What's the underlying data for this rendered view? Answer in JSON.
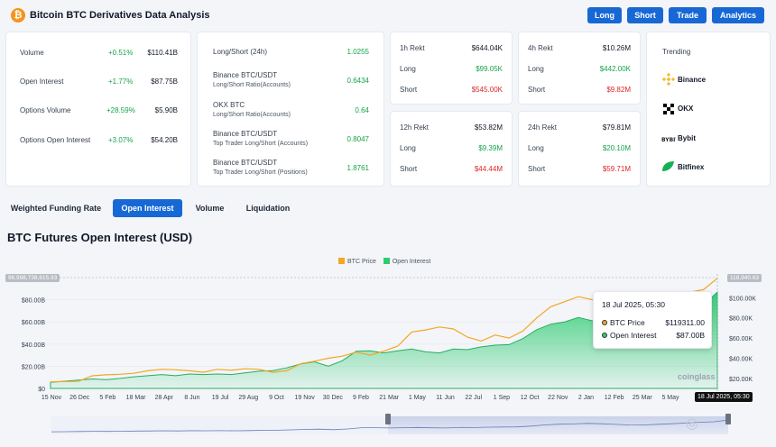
{
  "header": {
    "title": "Bitcoin BTC Derivatives Data Analysis",
    "logo_symbol": "₿",
    "buttons": [
      "Long",
      "Short",
      "Trade",
      "Analytics"
    ]
  },
  "stats": [
    {
      "label": "Volume",
      "change": "+0.51%",
      "value": "$110.41B"
    },
    {
      "label": "Open Interest",
      "change": "+1.77%",
      "value": "$87.75B"
    },
    {
      "label": "Options Volume",
      "change": "+28.59%",
      "value": "$5.90B"
    },
    {
      "label": "Options Open Interest",
      "change": "+3.07%",
      "value": "$54.20B"
    }
  ],
  "ratios": [
    {
      "label": "Long/Short (24h)",
      "sub": "",
      "value": "1.0255"
    },
    {
      "label": "Binance BTC/USDT",
      "sub": "Long/Short Ratio(Accounts)",
      "value": "0.6434"
    },
    {
      "label": "OKX BTC",
      "sub": "Long/Short Ratio(Accounts)",
      "value": "0.64"
    },
    {
      "label": "Binance BTC/USDT",
      "sub": "Top Trader Long/Short (Accounts)",
      "value": "0.8047"
    },
    {
      "label": "Binance BTC/USDT",
      "sub": "Top Trader Long/Short (Positions)",
      "value": "1.8761"
    }
  ],
  "rekt": [
    {
      "period": "1h Rekt",
      "total": "$644.04K",
      "long_label": "Long",
      "long": "$99.05K",
      "short_label": "Short",
      "short": "$545.00K"
    },
    {
      "period": "4h Rekt",
      "total": "$10.26M",
      "long_label": "Long",
      "long": "$442.00K",
      "short_label": "Short",
      "short": "$9.82M"
    },
    {
      "period": "12h Rekt",
      "total": "$53.82M",
      "long_label": "Long",
      "long": "$9.39M",
      "short_label": "Short",
      "short": "$44.44M"
    },
    {
      "period": "24h Rekt",
      "total": "$79.81M",
      "long_label": "Long",
      "long": "$20.10M",
      "short_label": "Short",
      "short": "$59.71M"
    }
  ],
  "trending": {
    "title": "Trending",
    "items": [
      {
        "name": "Binance",
        "icon": "binance-icon"
      },
      {
        "name": "OKX",
        "icon": "okx-icon"
      },
      {
        "name": "Bybit",
        "icon": "bybit-icon"
      },
      {
        "name": "Bitfinex",
        "icon": "bitfinex-icon"
      }
    ]
  },
  "tabs": [
    "Weighted Funding Rate",
    "Open Interest",
    "Volume",
    "Liquidation"
  ],
  "active_tab": "Open Interest",
  "chart_title": "BTC Futures Open Interest (USD)",
  "tooltip": {
    "date": "18 Jul 2025, 05:30",
    "price_label": "BTC Price",
    "price": "$119311.00",
    "oi_label": "Open Interest",
    "oi": "$87.00B"
  },
  "watermark": "coinglass",
  "chart_data": {
    "type": "area",
    "title": "",
    "legend": [
      "BTC Price",
      "Open Interest"
    ],
    "legend_position": "top-center",
    "colors": {
      "price": "#f5a623",
      "oi": "#2ecc71"
    },
    "x_labels": [
      "15 Nov",
      "26 Dec",
      "5 Feb",
      "18 Mar",
      "28 Apr",
      "8 Jun",
      "19 Jul",
      "29 Aug",
      "9 Oct",
      "19 Nov",
      "30 Dec",
      "9 Feb",
      "21 Mar",
      "1 May",
      "11 Jun",
      "22 Jul",
      "1 Sep",
      "12 Oct",
      "22 Nov",
      "2 Jan",
      "12 Feb",
      "25 Mar",
      "5 May"
    ],
    "y_left_ticks": [
      "$0",
      "$20.00B",
      "$40.00B",
      "$60.00B",
      "$80.00B"
    ],
    "y_right_ticks": [
      "$20.00K",
      "$40.00K",
      "$60.00K",
      "$80.00K",
      "$100.00K"
    ],
    "y_left_max_label": "98,998,738,615.93",
    "y_right_max_label": "118,940.63",
    "crosshair_date": "18 Jul 2025, 05:30",
    "ylim_left": [
      0,
      100
    ],
    "ylim_right": [
      10000,
      120000
    ],
    "series": [
      {
        "name": "Open Interest",
        "unit": "B USD",
        "values": [
          5.5,
          6.5,
          7.5,
          8.5,
          8.0,
          9.0,
          10.5,
          11.5,
          12.5,
          11.5,
          13.0,
          12.5,
          13.0,
          12.5,
          14.0,
          15.5,
          16.0,
          18.5,
          22.0,
          24.0,
          20.0,
          25.0,
          33.5,
          34.0,
          32.0,
          34.0,
          35.5,
          33.0,
          32.0,
          35.5,
          35.0,
          37.5,
          39.0,
          39.5,
          45.0,
          53.0,
          58.0,
          60.0,
          64.0,
          61.0,
          57.0,
          53.0,
          52.5,
          57.5,
          61.5,
          66.0,
          72.0,
          75.0,
          87.0
        ]
      },
      {
        "name": "BTC Price",
        "unit": "USD",
        "values": [
          16500,
          16800,
          17000,
          22500,
          23500,
          24000,
          25000,
          27500,
          29000,
          28500,
          27500,
          26000,
          29000,
          28000,
          29500,
          29000,
          26000,
          27500,
          34500,
          37000,
          40000,
          42000,
          46000,
          43000,
          47000,
          52000,
          66000,
          68000,
          71000,
          69000,
          61000,
          57000,
          63000,
          60000,
          67000,
          80000,
          91000,
          96000,
          101000,
          98000,
          94000,
          88000,
          84000,
          86000,
          94000,
          104000,
          105500,
          108000,
          119311
        ]
      }
    ]
  }
}
